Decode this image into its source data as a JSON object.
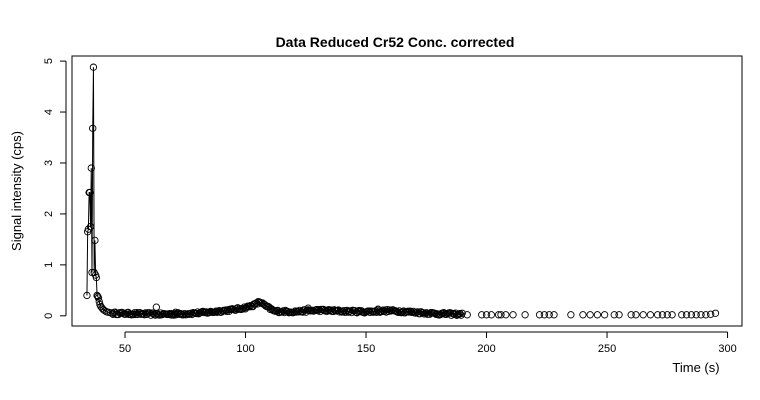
{
  "chart_data": {
    "type": "scatter",
    "title": "Data Reduced Cr52 Conc. corrected",
    "xlabel": "Time (s)",
    "ylabel": "Signal intensity (cps)",
    "xlim": [
      28,
      306
    ],
    "ylim": [
      -0.2,
      5.1
    ],
    "xticks": [
      50,
      100,
      150,
      200,
      250,
      300
    ],
    "yticks": [
      0,
      1,
      2,
      3,
      4,
      5
    ],
    "grid": false,
    "legend": "none",
    "line_color": "#000000",
    "marker": "open-circle",
    "peak_series": {
      "x": [
        34.2,
        34.5,
        34.8,
        35.1,
        35.4,
        35.7,
        36.0,
        36.3,
        36.6,
        36.9,
        37.2,
        37.5,
        37.8,
        38.1,
        38.4,
        38.7,
        39.0,
        39.3,
        39.6,
        40.0,
        40.5,
        41.0,
        41.6,
        42.3,
        43.0,
        44.0,
        45.0
      ],
      "y": [
        0.4,
        1.65,
        1.7,
        2.42,
        2.42,
        1.75,
        2.9,
        0.85,
        3.68,
        4.88,
        0.85,
        1.48,
        0.8,
        0.75,
        0.4,
        0.38,
        0.35,
        0.28,
        0.22,
        0.18,
        0.15,
        0.12,
        0.1,
        0.08,
        0.07,
        0.06,
        0.05
      ]
    },
    "baseline_profile": {
      "x": [
        45,
        55,
        65,
        75,
        85,
        95,
        100,
        104,
        106,
        108,
        112,
        120,
        130,
        140,
        150,
        160,
        170,
        180,
        190
      ],
      "y": [
        0.05,
        0.04,
        0.03,
        0.04,
        0.07,
        0.12,
        0.16,
        0.22,
        0.28,
        0.2,
        0.09,
        0.08,
        0.11,
        0.09,
        0.08,
        0.1,
        0.07,
        0.04,
        0.03
      ]
    },
    "outliers": {
      "x": [
        63,
        71,
        126,
        155
      ],
      "y": [
        0.17,
        0.07,
        0.15,
        0.13
      ]
    },
    "sparse_series": {
      "x": [
        192,
        198,
        200,
        202,
        205,
        206,
        208,
        211,
        216,
        222,
        224,
        226,
        228,
        235,
        240,
        243,
        246,
        249,
        253,
        255,
        260,
        262,
        265,
        268,
        271,
        273,
        275,
        277,
        281,
        283,
        285,
        287,
        289,
        291,
        293,
        295
      ],
      "y": [
        0.02,
        0.02,
        0.02,
        0.02,
        0.02,
        0.02,
        0.02,
        0.02,
        0.02,
        0.02,
        0.02,
        0.02,
        0.02,
        0.02,
        0.02,
        0.02,
        0.02,
        0.02,
        0.02,
        0.02,
        0.02,
        0.02,
        0.02,
        0.02,
        0.02,
        0.02,
        0.02,
        0.02,
        0.02,
        0.02,
        0.02,
        0.02,
        0.02,
        0.02,
        0.03,
        0.05
      ]
    }
  }
}
